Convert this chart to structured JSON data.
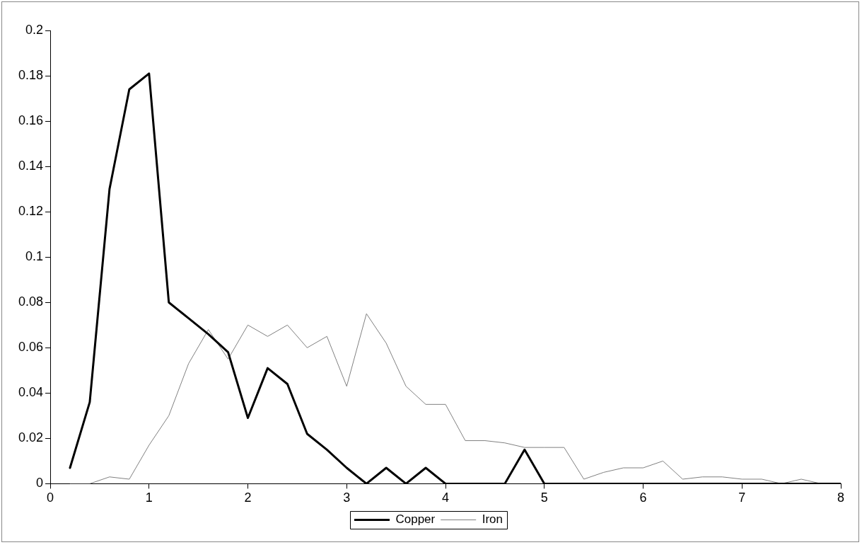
{
  "chart_data": {
    "type": "line",
    "x": [
      0.2,
      0.4,
      0.6,
      0.8,
      1.0,
      1.2,
      1.4,
      1.6,
      1.8,
      2.0,
      2.2,
      2.4,
      2.6,
      2.8,
      3.0,
      3.2,
      3.4,
      3.6,
      3.8,
      4.0,
      4.2,
      4.4,
      4.6,
      4.8,
      5.0,
      5.2,
      5.4,
      5.6,
      5.8,
      6.0,
      6.2,
      6.4,
      6.6,
      6.8,
      7.0,
      7.2,
      7.4,
      7.6,
      7.8,
      8.0
    ],
    "series": [
      {
        "name": "Copper",
        "color": "#000000",
        "values": [
          0.007,
          0.036,
          0.13,
          0.174,
          0.181,
          0.08,
          0.073,
          0.066,
          0.058,
          0.029,
          0.051,
          0.044,
          0.022,
          0.015,
          0.007,
          0,
          0.007,
          0,
          0.007,
          0,
          0,
          0,
          0,
          0.015,
          0,
          0,
          0,
          0,
          0,
          0,
          0,
          0,
          0,
          0,
          0,
          0,
          0,
          0,
          0,
          0
        ]
      },
      {
        "name": "Iron",
        "color": "#808080",
        "values": [
          0,
          0,
          0.003,
          0.002,
          0.017,
          0.03,
          0.053,
          0.068,
          0.055,
          0.07,
          0.065,
          0.07,
          0.06,
          0.065,
          0.043,
          0.075,
          0.062,
          0.043,
          0.035,
          0.035,
          0.019,
          0.019,
          0.018,
          0.016,
          0.016,
          0.016,
          0.002,
          0.005,
          0.007,
          0.007,
          0.01,
          0.002,
          0.003,
          0.003,
          0.002,
          0.002,
          0,
          0.002,
          0,
          0
        ]
      }
    ],
    "xlim": [
      0,
      8
    ],
    "xticks": [
      0,
      1,
      2,
      3,
      4,
      5,
      6,
      7,
      8
    ],
    "ylim": [
      0,
      0.2
    ],
    "yticks": [
      0,
      0.02,
      0.04,
      0.06,
      0.08,
      0.1,
      0.12,
      0.14,
      0.16,
      0.18,
      0.2
    ],
    "grid": false,
    "legend": "bottom",
    "marker": "none",
    "line_style": "solid"
  }
}
